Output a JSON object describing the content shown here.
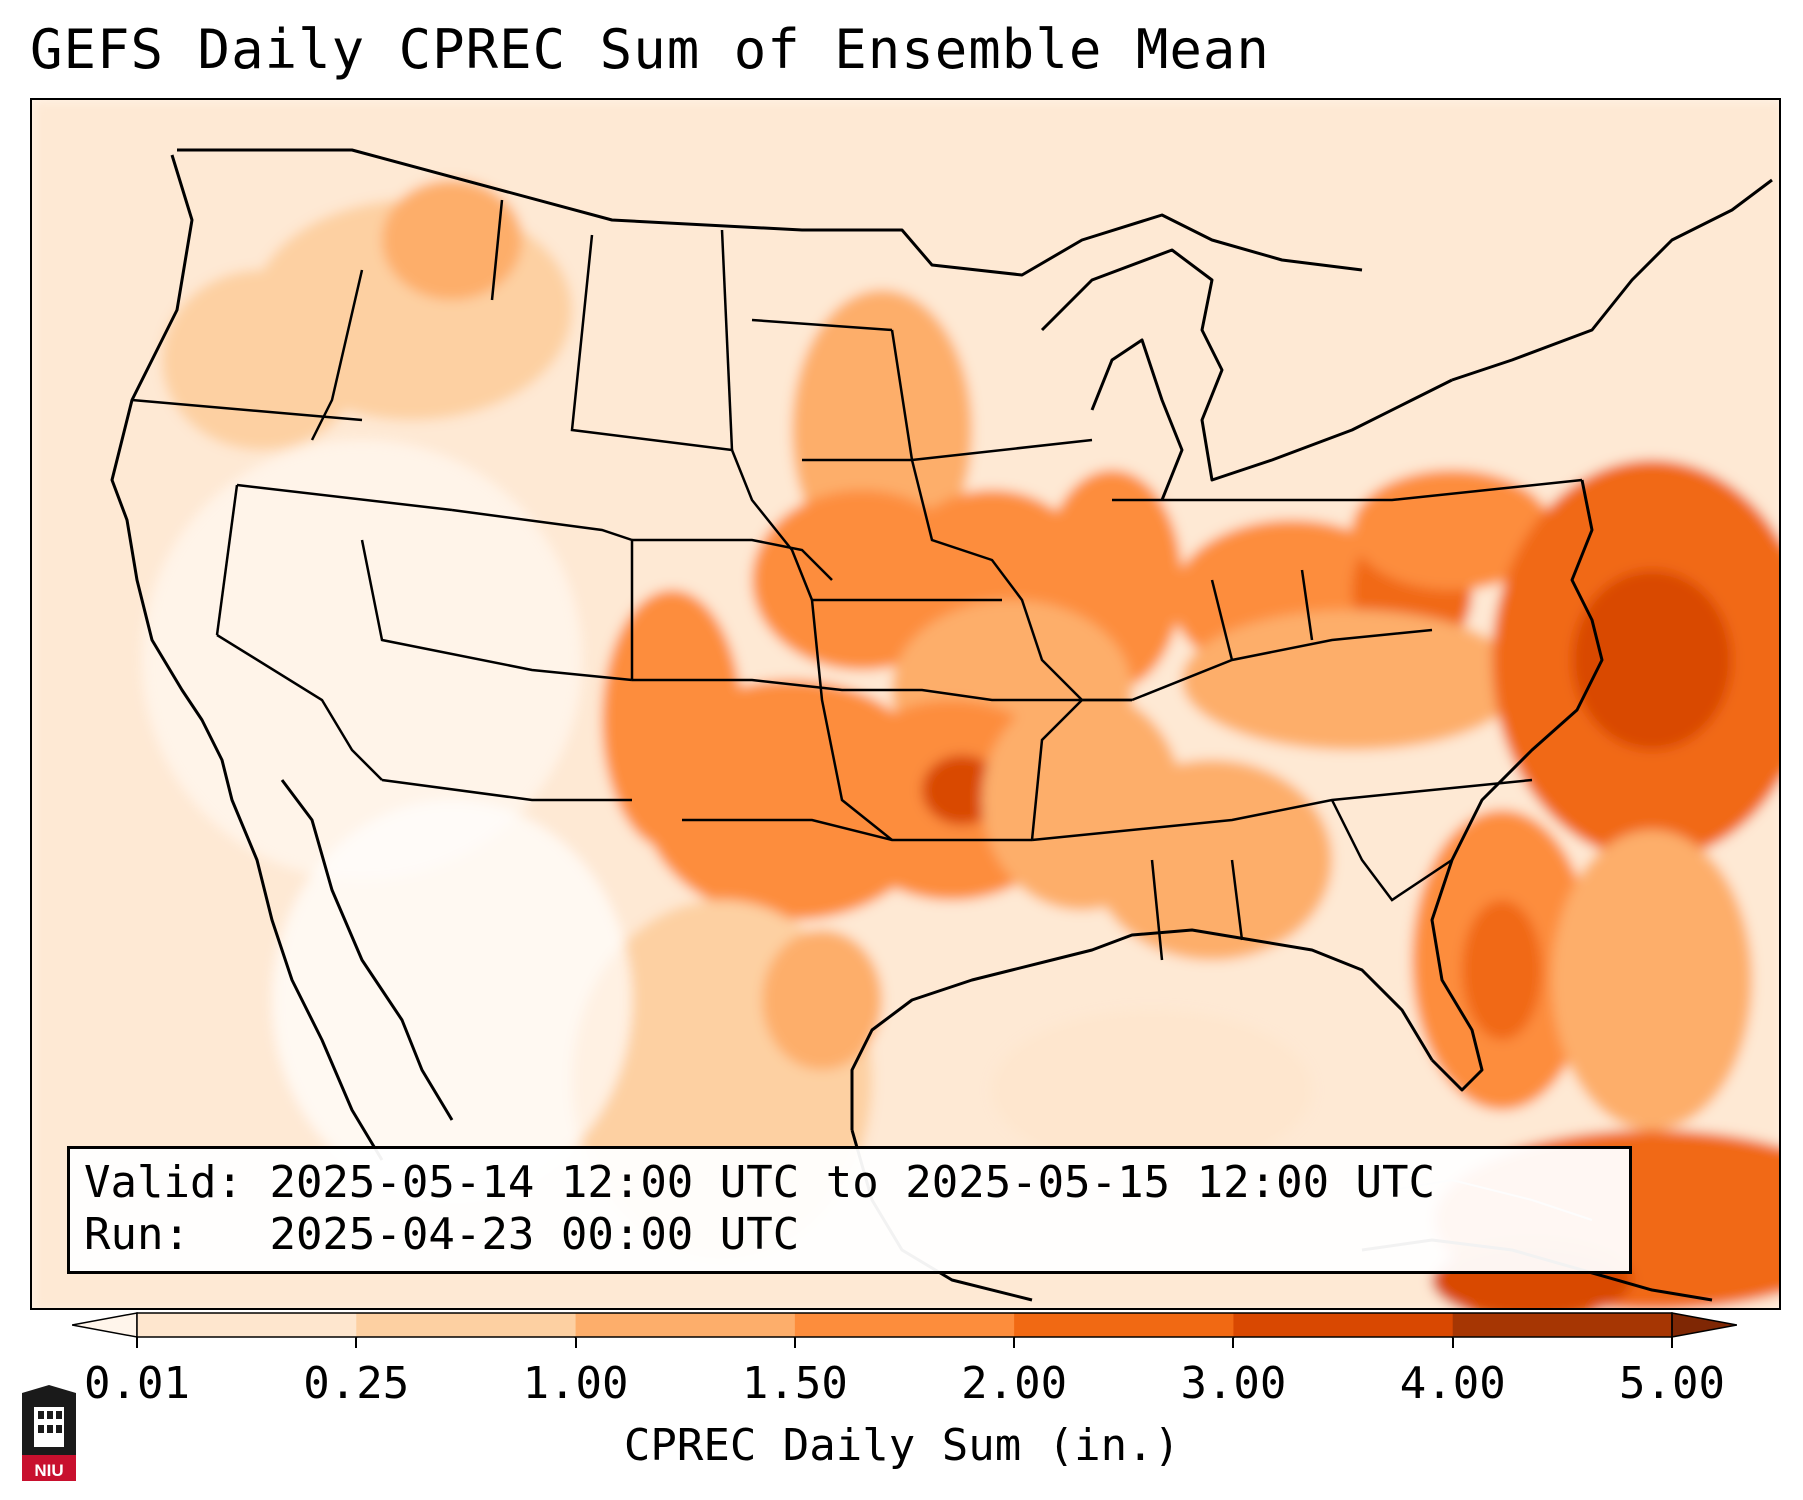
{
  "title": "GEFS Daily CPREC Sum of Ensemble Mean",
  "info": {
    "valid_label": "Valid:",
    "valid_value": "2025-05-14 12:00 UTC to 2025-05-15 12:00 UTC",
    "run_label": "Run:",
    "run_value": "2025-04-23 00:00 UTC"
  },
  "colorbar": {
    "title": "CPREC Daily Sum (in.)",
    "ticks": [
      "0.01",
      "0.25",
      "1.00",
      "1.50",
      "2.00",
      "3.00",
      "4.00",
      "5.00"
    ],
    "colors": [
      "#fff5eb",
      "#fee6ce",
      "#fdd0a2",
      "#fdae6b",
      "#fd8d3c",
      "#f16913",
      "#d94801",
      "#a63603",
      "#7f2704"
    ]
  },
  "logo": {
    "text": "NIU"
  },
  "icons": {
    "logo": "university-tower-icon"
  }
}
